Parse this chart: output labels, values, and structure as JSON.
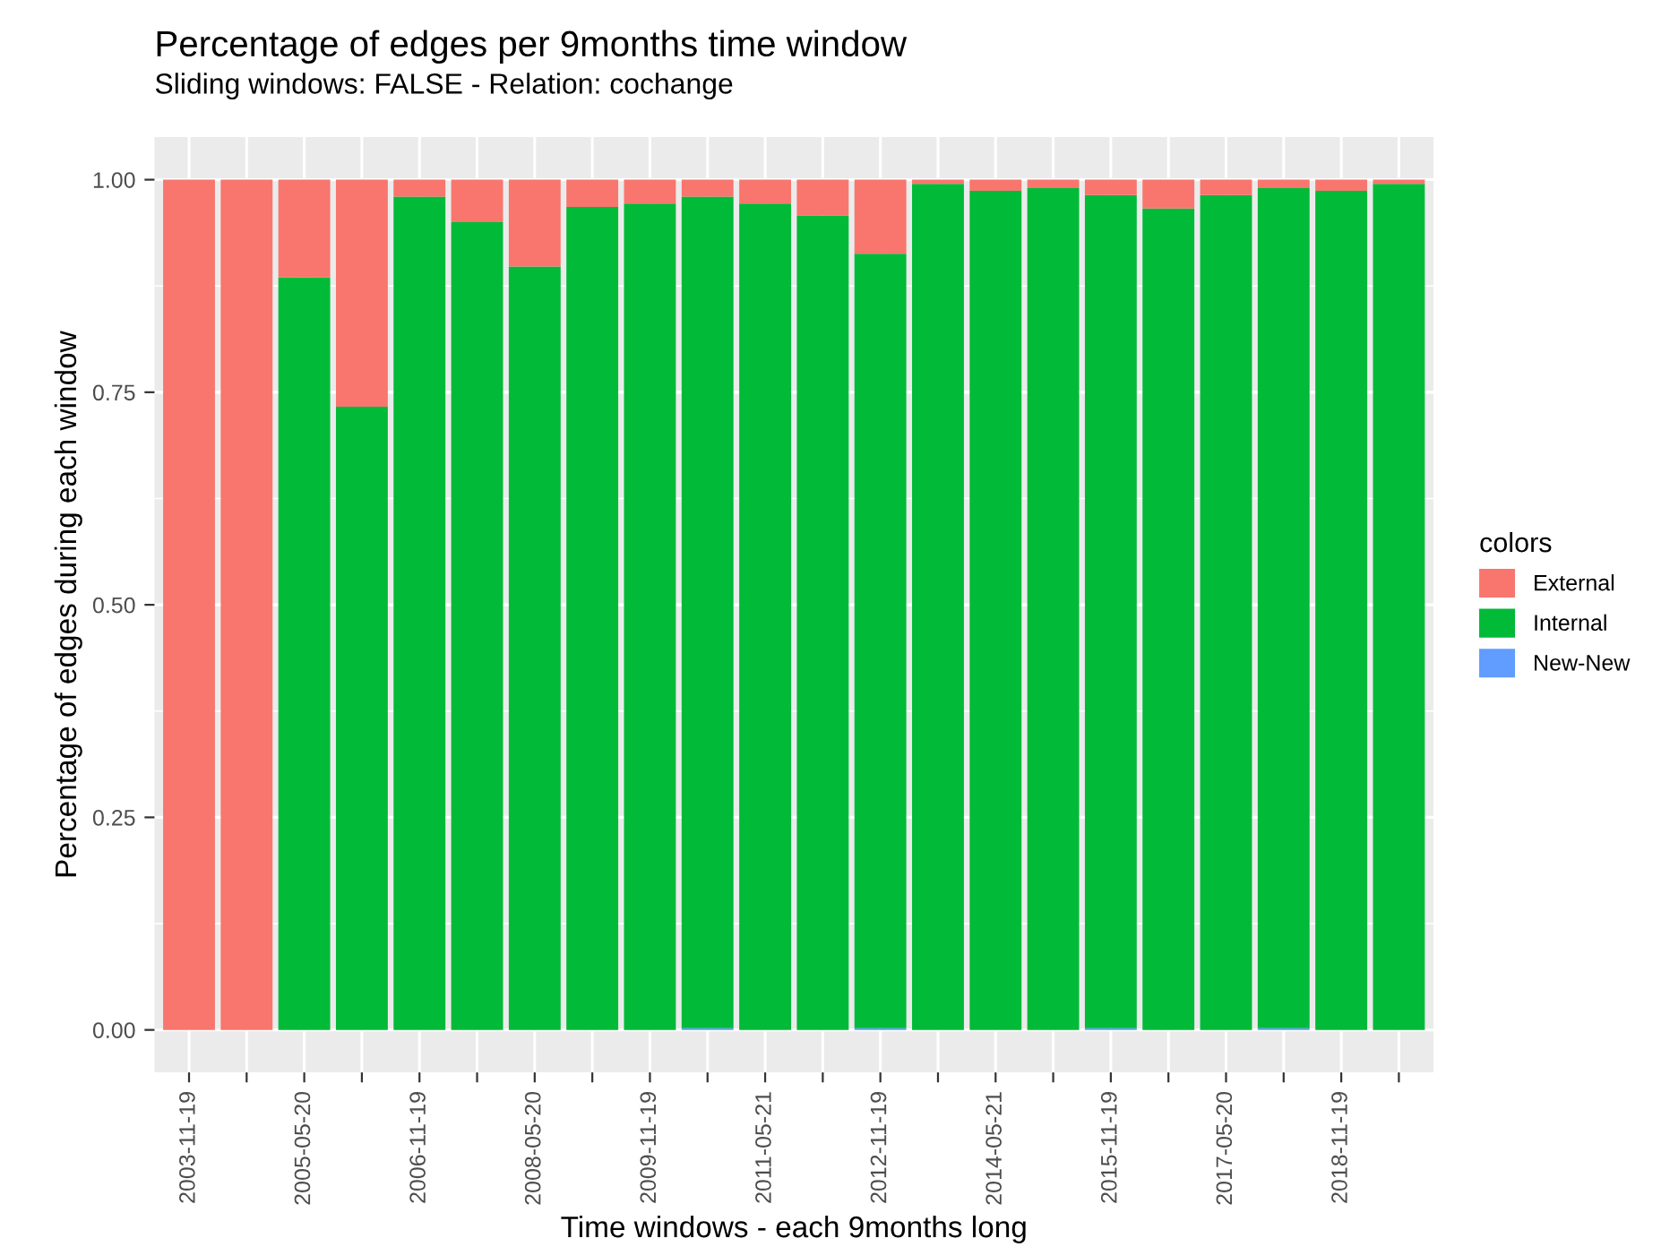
{
  "chart_data": {
    "type": "bar",
    "title": "Percentage of edges per 9months time window",
    "subtitle": "Sliding windows: FALSE - Relation: cochange",
    "xlabel": "Time windows - each 9months long",
    "ylabel": "Percentage of edges during each window",
    "legend_title": "colors",
    "categories": [
      "2003-11-19",
      null,
      "2005-05-20",
      null,
      "2006-11-19",
      null,
      "2008-05-20",
      null,
      "2009-11-19",
      null,
      "2011-05-21",
      null,
      "2012-11-19",
      null,
      "2014-05-21",
      null,
      "2015-11-19",
      null,
      "2017-05-20",
      null,
      "2018-11-19",
      null
    ],
    "stacked": true,
    "series": [
      {
        "name": "New-New",
        "color": "#619cff",
        "values": [
          0,
          0,
          0,
          0,
          0,
          0,
          0,
          0,
          0,
          0.002,
          0,
          0,
          0.002,
          0,
          0,
          0,
          0.002,
          0,
          0,
          0.002,
          0,
          0
        ]
      },
      {
        "name": "Internal",
        "color": "#00ba38",
        "values": [
          0,
          0,
          0.885,
          0.733,
          0.98,
          0.95,
          0.898,
          0.968,
          0.972,
          0.978,
          0.972,
          0.958,
          0.911,
          0.995,
          0.987,
          0.99,
          0.98,
          0.966,
          0.982,
          0.988,
          0.987,
          0.995
        ]
      },
      {
        "name": "External",
        "color": "#f8766d",
        "values": [
          1,
          1,
          0.115,
          0.267,
          0.02,
          0.05,
          0.102,
          0.032,
          0.028,
          0.02,
          0.028,
          0.042,
          0.087,
          0.005,
          0.013,
          0.01,
          0.018,
          0.034,
          0.018,
          0.01,
          0.013,
          0.005
        ]
      }
    ],
    "ylim": [
      -0.05,
      1.05
    ],
    "yticks": [
      {
        "value": 0,
        "label": "0.00"
      },
      {
        "value": 0.25,
        "label": "0.25"
      },
      {
        "value": 0.5,
        "label": "0.50"
      },
      {
        "value": 0.75,
        "label": "0.75"
      },
      {
        "value": 1,
        "label": "1.00"
      }
    ],
    "grid": true,
    "legend": "right"
  }
}
